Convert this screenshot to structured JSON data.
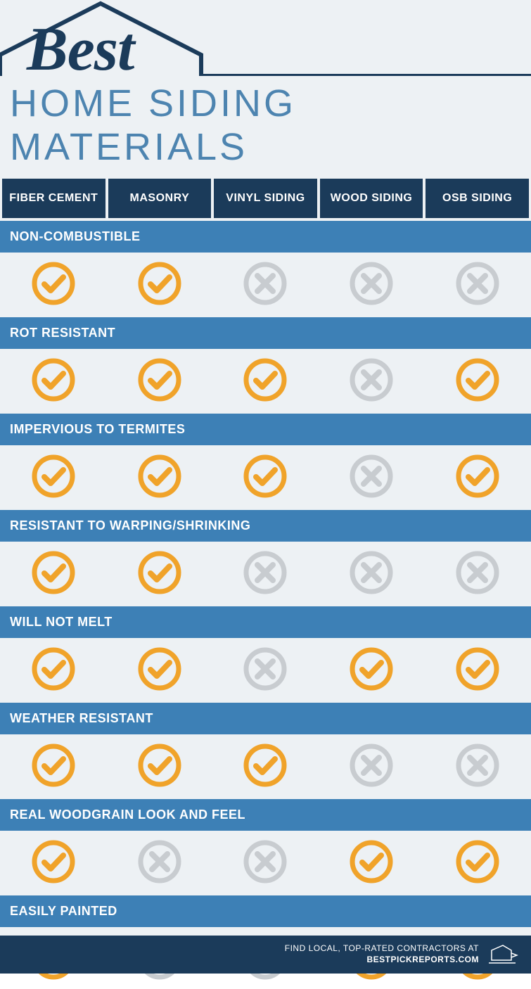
{
  "theme": {
    "bg": "#edf1f4",
    "navy": "#1b3b5a",
    "blue": "#3d80b6",
    "lightblue": "#4d84b0",
    "check_ring": "#f0a32a",
    "check_mark": "#f0a32a",
    "cross": "#c8ccd0"
  },
  "title_best": "Best",
  "subtitle": "HOME SIDING MATERIALS",
  "columns": [
    "FIBER CEMENT",
    "MASONRY",
    "VINYL SIDING",
    "WOOD SIDING",
    "OSB SIDING"
  ],
  "features": [
    {
      "label": "NON-COMBUSTIBLE",
      "values": [
        true,
        true,
        false,
        false,
        false
      ]
    },
    {
      "label": "ROT RESISTANT",
      "values": [
        true,
        true,
        true,
        false,
        true
      ]
    },
    {
      "label": "IMPERVIOUS TO TERMITES",
      "values": [
        true,
        true,
        true,
        false,
        true
      ]
    },
    {
      "label": "RESISTANT TO WARPING/SHRINKING",
      "values": [
        true,
        true,
        false,
        false,
        false
      ]
    },
    {
      "label": "WILL NOT MELT",
      "values": [
        true,
        true,
        false,
        true,
        true
      ]
    },
    {
      "label": "WEATHER RESISTANT",
      "values": [
        true,
        true,
        true,
        false,
        false
      ]
    },
    {
      "label": "REAL WOODGRAIN LOOK AND FEEL",
      "values": [
        true,
        false,
        false,
        true,
        true
      ]
    },
    {
      "label": "EASILY PAINTED",
      "values": [
        true,
        false,
        false,
        true,
        true
      ]
    }
  ],
  "footer": {
    "line1": "FIND LOCAL, TOP-RATED CONTRACTORS AT",
    "line2": "BESTPICKREPORTS.COM"
  }
}
